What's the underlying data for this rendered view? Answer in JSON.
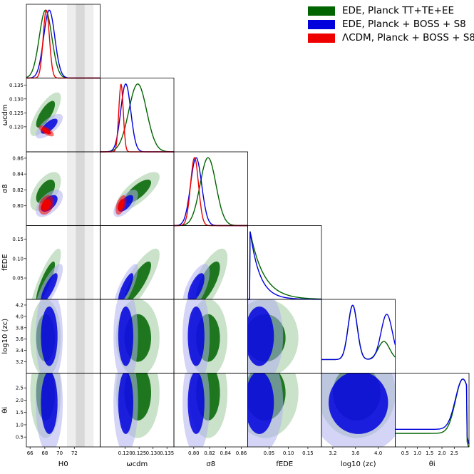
{
  "chart_data": {
    "type": "corner",
    "parameters": [
      {
        "key": "H0",
        "label": "H0",
        "range": [
          65.5,
          75.5
        ],
        "ticks": [
          66,
          68,
          70,
          72
        ]
      },
      {
        "key": "wcdm",
        "label": "ωcdm",
        "range": [
          0.111,
          0.1375
        ],
        "ticks": [
          0.12,
          0.125,
          0.13,
          0.135
        ]
      },
      {
        "key": "s8",
        "label": "σ8",
        "range": [
          0.775,
          0.868
        ],
        "ticks": [
          0.8,
          0.82,
          0.84,
          0.86
        ]
      },
      {
        "key": "fede",
        "label": "fEDE",
        "range": [
          -0.005,
          0.185
        ],
        "ticks": [
          0.05,
          0.1,
          0.15
        ]
      },
      {
        "key": "logzc",
        "label": "log10 (zc)",
        "range": [
          3.0,
          4.3
        ],
        "ticks": [
          3.2,
          3.6,
          4.0
        ]
      },
      {
        "key": "thetai",
        "label": "θi",
        "range": [
          0.1,
          3.1
        ],
        "ticks": [
          0.5,
          1.0,
          1.5,
          2.0,
          2.5
        ]
      }
    ],
    "tick_labels": {
      "H0": [
        "66",
        "68",
        "70",
        "72"
      ],
      "wcdm": [
        "0.120",
        "0.125",
        "0.130",
        "0.135"
      ],
      "s8": [
        "0.80",
        "0.82",
        "0.84",
        "0.86"
      ],
      "fede": [
        "0.05",
        "0.10",
        "0.15"
      ],
      "logzc": [
        "3.2",
        "3.6",
        "4.0"
      ],
      "thetai": [
        "0.5",
        "1.0",
        "1.5",
        "2.0",
        "2.5"
      ],
      "wcdm_y": [
        "0.120",
        "0.125",
        "0.130",
        "0.135"
      ],
      "s8_y": [
        "0.80",
        "0.82",
        "0.84",
        "0.86"
      ],
      "fede_y": [
        "0.05",
        "0.10",
        "0.15"
      ],
      "logzc_y": [
        "3.2",
        "3.4",
        "3.6",
        "3.8",
        "4.0",
        "4.2"
      ],
      "thetai_y": [
        "0.5",
        "1.0",
        "1.5",
        "2.0",
        "2.5"
      ]
    },
    "series": [
      {
        "name": "EDE, Planck TT+TE+EE",
        "color": "#006400",
        "light": "#9ec99e",
        "mean": {
          "H0": 68.1,
          "wcdm": 0.1245,
          "s8": 0.818,
          "fede": 0.04,
          "logzc": 3.62,
          "thetai": 2.3
        },
        "sd": {
          "H0": 0.85,
          "wcdm": 0.0032,
          "s8": 0.01,
          "fede": 0.035,
          "logzc": 0.28,
          "thetai": 0.75
        },
        "corr": {
          "H0-wcdm": 0.75,
          "H0-s8": 0.55,
          "H0-fede": 0.85,
          "wcdm-s8": 0.75,
          "wcdm-fede": 0.82,
          "s8-fede": 0.72
        }
      },
      {
        "name": "EDE, Planck + BOSS + S8",
        "color": "#0000dd",
        "light": "#b0b0ee",
        "mean": {
          "H0": 68.6,
          "wcdm": 0.1202,
          "s8": 0.803,
          "fede": 0.025,
          "logzc": 3.65,
          "thetai": 1.9
        },
        "sd": {
          "H0": 0.75,
          "wcdm": 0.0018,
          "s8": 0.007,
          "fede": 0.025,
          "logzc": 0.35,
          "thetai": 0.85
        },
        "corr": {
          "H0-wcdm": 0.7,
          "H0-s8": 0.55,
          "H0-fede": 0.8,
          "wcdm-s8": 0.65,
          "wcdm-fede": 0.8,
          "s8-fede": 0.65
        }
      },
      {
        "name": "ΛCDM, Planck + BOSS + S8",
        "color": "#ee0000",
        "light": "#ee0000",
        "mean": {
          "H0": 68.2,
          "wcdm": 0.1185,
          "s8": 0.801,
          "fede": 0,
          "logzc": 0,
          "thetai": 0
        },
        "sd": {
          "H0": 0.42,
          "wcdm": 0.0008,
          "s8": 0.005,
          "fede": 0,
          "logzc": 0,
          "thetai": 0
        },
        "corr": {
          "H0-wcdm": -0.7,
          "H0-s8": 0.3,
          "wcdm-s8": 0.5
        }
      }
    ],
    "shaded_band": {
      "param": "H0",
      "inner": [
        72.2,
        73.4
      ],
      "outer": [
        71.0,
        74.6
      ]
    },
    "colors": {
      "band_outer": "#eeeeee",
      "band_inner": "#d8d8d8"
    },
    "legend": {
      "position": "top-right"
    },
    "grid": false
  }
}
